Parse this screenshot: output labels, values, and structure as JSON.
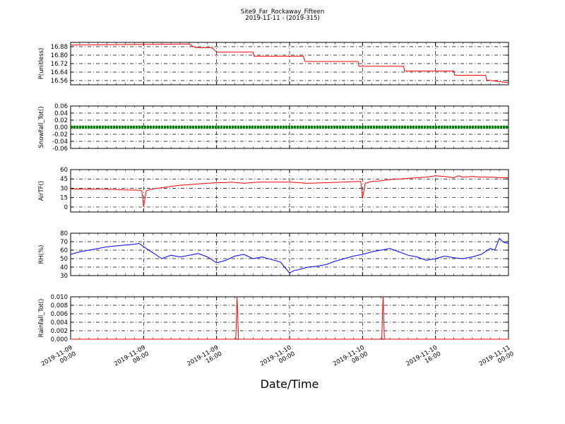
{
  "figure": {
    "title_line1": "Site9_Far_Rockaway_Fifteen",
    "title_line2": "2019-11-11 - (2019-315)",
    "xlabel": "Date/Time"
  },
  "chart_data": {
    "type": "line",
    "x_range": [
      "2019-11-09 00:00",
      "2019-11-11 00:00"
    ],
    "x_ticks": [
      {
        "line1": "2019-11-09",
        "line2": "00:00"
      },
      {
        "line1": "2019-11-09",
        "line2": "08:00"
      },
      {
        "line1": "2019-11-09",
        "line2": "16:00"
      },
      {
        "line1": "2019-11-10",
        "line2": "00:00"
      },
      {
        "line1": "2019-11-10",
        "line2": "08:00"
      },
      {
        "line1": "2019-11-10",
        "line2": "16:00"
      },
      {
        "line1": "2019-11-11",
        "line2": "00:00"
      }
    ],
    "grid": true,
    "panels": [
      {
        "ylabel": "P(unitless)",
        "color": "#ff0000",
        "ylim": [
          16.52,
          16.92
        ],
        "yticks": [
          "16.88",
          "16.80",
          "16.72",
          "16.64",
          "16.56"
        ],
        "ytick_values": [
          16.88,
          16.8,
          16.72,
          16.64,
          16.56
        ],
        "step": true,
        "x_hours": [
          0,
          13,
          13.5,
          13.8,
          15.5,
          16,
          20,
          20.1,
          25.5,
          25.7,
          31.5,
          31.6,
          36.5,
          36.6,
          42,
          42.1,
          45.5,
          45.6,
          48
        ],
        "y": [
          16.895,
          16.905,
          16.878,
          16.87,
          16.87,
          16.828,
          16.828,
          16.79,
          16.79,
          16.74,
          16.74,
          16.695,
          16.695,
          16.65,
          16.65,
          16.61,
          16.61,
          16.565,
          16.54
        ]
      },
      {
        "ylabel": "Snowfall_Tot()",
        "color": "#008000",
        "ylim": [
          -0.06,
          0.06
        ],
        "yticks": [
          "0.06",
          "0.04",
          "0.02",
          "0.00",
          "-0.02",
          "-0.04",
          "-0.06"
        ],
        "ytick_values": [
          0.06,
          0.04,
          0.02,
          0.0,
          -0.02,
          -0.04,
          -0.06
        ],
        "style": "thick",
        "x_hours": [
          0,
          48
        ],
        "y": [
          0,
          0
        ]
      },
      {
        "ylabel": "AirTF()",
        "color": "#ff0000",
        "ylim": [
          -8,
          60
        ],
        "yticks": [
          "60",
          "45",
          "30",
          "15",
          "0"
        ],
        "ytick_values": [
          60,
          45,
          30,
          15,
          0
        ],
        "x_hours": [
          0,
          2,
          4,
          6,
          7.5,
          7.8,
          8.0,
          8.3,
          9,
          10,
          11,
          12,
          13,
          14,
          15,
          16,
          17,
          17.5,
          19,
          20,
          21,
          22,
          24,
          26,
          28,
          30,
          31.5,
          31.8,
          32,
          32.3,
          33,
          34,
          35,
          36,
          37,
          38,
          39,
          40,
          41,
          42,
          42.5,
          43,
          44,
          45,
          46,
          47,
          48
        ],
        "y": [
          29,
          28.5,
          28.5,
          27.5,
          27,
          26,
          1,
          26,
          29,
          31,
          33,
          35,
          36,
          37,
          38,
          39,
          39,
          40,
          38,
          39.5,
          40,
          40,
          40,
          38,
          39,
          40,
          41,
          41,
          14,
          38,
          41,
          42,
          44,
          45,
          46,
          47,
          48,
          50,
          49,
          47,
          50,
          48,
          49,
          48,
          48,
          47,
          47
        ]
      },
      {
        "ylabel": "RH(%)",
        "color": "#0000ff",
        "ylim": [
          30,
          80
        ],
        "yticks": [
          "80",
          "70",
          "60",
          "50",
          "40",
          "30"
        ],
        "ytick_values": [
          80,
          70,
          60,
          50,
          40,
          30
        ],
        "x_hours": [
          0,
          1,
          2,
          3,
          4,
          5,
          6,
          7,
          7.5,
          8,
          9,
          10,
          11,
          12,
          13,
          14,
          15,
          16,
          17,
          18,
          19,
          20,
          21,
          22,
          23,
          24,
          24.5,
          25,
          26,
          27,
          28,
          29,
          30,
          31,
          32,
          33,
          34,
          35,
          36,
          37,
          38,
          39,
          40,
          41,
          42,
          43,
          44,
          45,
          46,
          46.5,
          47,
          47.5,
          48
        ],
        "y": [
          55,
          58,
          60,
          62,
          64,
          65,
          66,
          67,
          68,
          64,
          57,
          50,
          54,
          52,
          54,
          56,
          52,
          45,
          48,
          53,
          55,
          50,
          52,
          49,
          46,
          33,
          36,
          37,
          40,
          41,
          43,
          47,
          50,
          53,
          55,
          58,
          60,
          62,
          58,
          54,
          52,
          48,
          50,
          53,
          51,
          50,
          52,
          55,
          62,
          60,
          74,
          69,
          68
        ]
      },
      {
        "ylabel": "Rainfall_Tot()",
        "color": "#ff0000",
        "ylim": [
          0,
          0.01
        ],
        "yticks": [
          "0.010",
          "0.008",
          "0.006",
          "0.004",
          "0.002",
          "0.000"
        ],
        "ytick_values": [
          0.01,
          0.008,
          0.006,
          0.004,
          0.002,
          0.0
        ],
        "x_hours": [
          0,
          18.1,
          18.25,
          18.4,
          34.1,
          34.25,
          34.4,
          48
        ],
        "y": [
          0,
          0,
          0.01,
          0,
          0,
          0.01,
          0,
          0
        ]
      }
    ]
  }
}
